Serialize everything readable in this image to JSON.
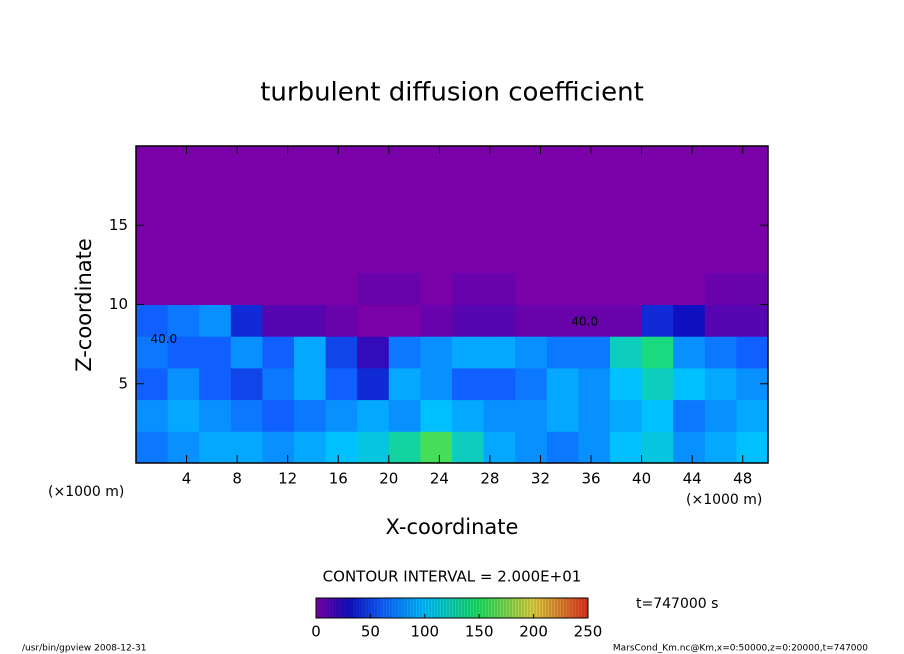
{
  "chart_data": {
    "type": "contour",
    "title": "turbulent diffusion coefficient",
    "xlabel": "X-coordinate",
    "ylabel": "Z-coordinate",
    "xunit": "(×1000 m)",
    "yunit": "(×1000 m)",
    "xlim": [
      0,
      50
    ],
    "ylim": [
      0,
      20
    ],
    "xticks": [
      4,
      8,
      12,
      16,
      20,
      24,
      28,
      32,
      36,
      40,
      44,
      48
    ],
    "yticks": [
      5,
      10,
      15
    ],
    "x": [
      1.25,
      3.75,
      6.25,
      8.75,
      11.25,
      13.75,
      16.25,
      18.75,
      21.25,
      23.75,
      26.25,
      28.75,
      31.25,
      33.75,
      36.25,
      38.75,
      41.25,
      43.75,
      46.25,
      48.75
    ],
    "y": [
      1,
      3,
      5,
      7,
      9,
      11,
      13,
      15,
      17,
      19
    ],
    "z": [
      [
        70,
        80,
        90,
        90,
        80,
        90,
        100,
        110,
        130,
        160,
        120,
        90,
        80,
        70,
        80,
        100,
        110,
        80,
        90,
        100
      ],
      [
        80,
        90,
        80,
        70,
        60,
        70,
        80,
        90,
        80,
        100,
        90,
        80,
        80,
        90,
        80,
        90,
        100,
        70,
        80,
        90
      ],
      [
        60,
        80,
        60,
        50,
        70,
        90,
        60,
        40,
        90,
        80,
        60,
        60,
        70,
        90,
        80,
        100,
        120,
        100,
        90,
        80
      ],
      [
        70,
        60,
        60,
        80,
        60,
        90,
        50,
        20,
        70,
        80,
        90,
        90,
        80,
        70,
        70,
        120,
        140,
        80,
        70,
        60
      ],
      [
        60,
        70,
        80,
        40,
        10,
        10,
        5,
        0,
        0,
        5,
        10,
        10,
        5,
        5,
        5,
        5,
        40,
        30,
        10,
        10
      ],
      [
        0,
        0,
        0,
        0,
        0,
        0,
        0,
        5,
        5,
        0,
        5,
        5,
        0,
        0,
        0,
        0,
        0,
        0,
        5,
        5
      ],
      [
        0,
        0,
        0,
        0,
        0,
        0,
        0,
        0,
        0,
        0,
        0,
        0,
        0,
        0,
        0,
        0,
        0,
        0,
        0,
        0
      ],
      [
        0,
        0,
        0,
        0,
        0,
        0,
        0,
        0,
        0,
        0,
        0,
        0,
        0,
        0,
        0,
        0,
        0,
        0,
        0,
        0
      ],
      [
        0,
        0,
        0,
        0,
        0,
        0,
        0,
        0,
        0,
        0,
        0,
        0,
        0,
        0,
        0,
        0,
        0,
        0,
        0,
        0
      ],
      [
        0,
        0,
        0,
        0,
        0,
        0,
        0,
        0,
        0,
        0,
        0,
        0,
        0,
        0,
        0,
        0,
        0,
        0,
        0,
        0
      ]
    ],
    "contour_labels": [
      {
        "text": "40.0",
        "x": 2.2,
        "z": 7.8
      },
      {
        "text": "40.0",
        "x": 35.5,
        "z": 8.9
      }
    ],
    "colorscale": [
      [
        0,
        "#7a00a8"
      ],
      [
        30,
        "#1010c0"
      ],
      [
        60,
        "#1060ff"
      ],
      [
        100,
        "#00c0ff"
      ],
      [
        150,
        "#20e060"
      ],
      [
        200,
        "#e0d040"
      ],
      [
        250,
        "#e03020"
      ]
    ],
    "colorbar_ticks": [
      0,
      50,
      100,
      150,
      200,
      250
    ],
    "contour_interval": "CONTOUR INTERVAL = 2.000E+01",
    "time_label": "t=747000 s",
    "footer_left": "/usr/bin/gpview   2008-12-31",
    "footer_right": "MarsCond_Km.nc@Km,x=0:50000,z=0:20000,t=747000"
  }
}
